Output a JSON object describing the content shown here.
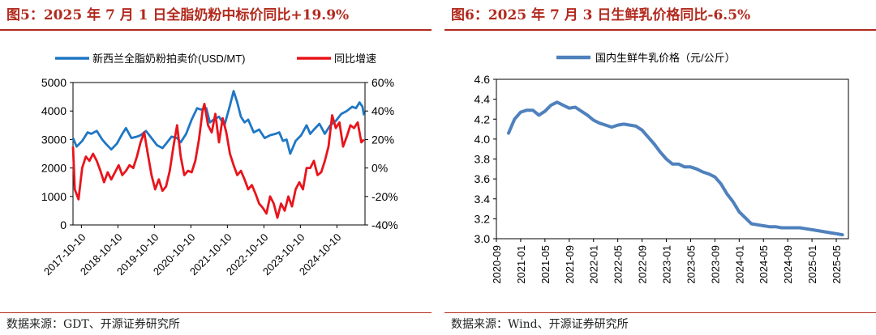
{
  "left": {
    "title": "图5：2025 年 7 月 1 日全脂奶粉中标价同比+19.9%",
    "source": "数据来源：GDT、开源证券研究所",
    "chart_data": {
      "type": "line",
      "title": "",
      "legend_placement": "top",
      "grid": false,
      "x_labels": [
        "2017-10-10",
        "2018-10-10",
        "2019-10-10",
        "2020-10-10",
        "2021-10-10",
        "2022-10-10",
        "2023-10-10",
        "2024-10-10"
      ],
      "x_range": [
        2017.55,
        2025.55
      ],
      "y_left": {
        "range": [
          0,
          5000
        ],
        "ticks": [
          0,
          1000,
          2000,
          3000,
          4000,
          5000
        ],
        "tick_labels": [
          "0",
          "1000",
          "2000",
          "3000",
          "4000",
          "5000"
        ]
      },
      "y_right": {
        "range": [
          -40,
          60
        ],
        "ticks": [
          -40,
          -20,
          0,
          20,
          40,
          60
        ],
        "tick_labels": [
          "-40%",
          "-20%",
          "0%",
          "20%",
          "40%",
          "60%"
        ]
      },
      "series": [
        {
          "name": "新西兰全脂奶粉拍卖价(USD/MT)",
          "color": "#1f77c4",
          "axis": "left",
          "x": [
            2017.55,
            2017.65,
            2017.8,
            2017.95,
            2018.05,
            2018.2,
            2018.35,
            2018.45,
            2018.6,
            2018.75,
            2018.9,
            2019.0,
            2019.15,
            2019.3,
            2019.4,
            2019.55,
            2019.7,
            2019.85,
            2020.0,
            2020.1,
            2020.25,
            2020.4,
            2020.5,
            2020.65,
            2020.8,
            2020.95,
            2021.05,
            2021.2,
            2021.3,
            2021.4,
            2021.55,
            2021.7,
            2021.85,
            2021.95,
            2022.05,
            2022.15,
            2022.25,
            2022.35,
            2022.5,
            2022.65,
            2022.8,
            2022.95,
            2023.1,
            2023.2,
            2023.3,
            2023.4,
            2023.5,
            2023.65,
            2023.8,
            2023.95,
            2024.05,
            2024.15,
            2024.3,
            2024.45,
            2024.6,
            2024.75,
            2024.9,
            2025.05,
            2025.2,
            2025.3,
            2025.4,
            2025.48,
            2025.52
          ],
          "y": [
            3050,
            2750,
            2950,
            3250,
            3200,
            3300,
            3000,
            2850,
            2650,
            2850,
            3200,
            3400,
            3050,
            3100,
            3150,
            3300,
            3050,
            2800,
            2700,
            2850,
            3100,
            3050,
            2900,
            3200,
            3700,
            4100,
            4050,
            4100,
            3600,
            3700,
            3800,
            3500,
            4200,
            4700,
            4300,
            3800,
            3600,
            3700,
            3250,
            3350,
            3050,
            3150,
            3200,
            3250,
            2950,
            3000,
            2500,
            2950,
            3150,
            3500,
            3200,
            3350,
            3550,
            3200,
            3500,
            3650,
            3900,
            4000,
            4150,
            4100,
            4300,
            4150,
            3850
          ]
        },
        {
          "name": "同比增速",
          "color": "#e8141c",
          "axis": "right",
          "x": [
            2017.55,
            2017.6,
            2017.7,
            2017.8,
            2017.9,
            2018.0,
            2018.1,
            2018.2,
            2018.3,
            2018.4,
            2018.5,
            2018.6,
            2018.7,
            2018.8,
            2018.9,
            2019.0,
            2019.1,
            2019.2,
            2019.3,
            2019.4,
            2019.5,
            2019.6,
            2019.7,
            2019.8,
            2019.9,
            2020.0,
            2020.1,
            2020.2,
            2020.3,
            2020.4,
            2020.5,
            2020.6,
            2020.7,
            2020.8,
            2020.9,
            2021.0,
            2021.1,
            2021.15,
            2021.25,
            2021.35,
            2021.45,
            2021.55,
            2021.65,
            2021.75,
            2021.85,
            2021.95,
            2022.05,
            2022.15,
            2022.25,
            2022.35,
            2022.45,
            2022.55,
            2022.65,
            2022.75,
            2022.85,
            2022.95,
            2023.05,
            2023.15,
            2023.25,
            2023.35,
            2023.45,
            2023.55,
            2023.65,
            2023.75,
            2023.85,
            2023.95,
            2024.05,
            2024.15,
            2024.25,
            2024.35,
            2024.45,
            2024.55,
            2024.65,
            2024.75,
            2024.85,
            2024.95,
            2025.05,
            2025.15,
            2025.25,
            2025.35,
            2025.45,
            2025.52
          ],
          "y": [
            15,
            -15,
            -22,
            0,
            8,
            5,
            10,
            5,
            -2,
            -10,
            -3,
            -8,
            -3,
            2,
            -5,
            -2,
            2,
            0,
            8,
            18,
            25,
            10,
            -5,
            -15,
            -8,
            -16,
            -13,
            -2,
            15,
            30,
            8,
            -5,
            -2,
            -3,
            5,
            20,
            40,
            45,
            30,
            25,
            38,
            18,
            35,
            25,
            10,
            2,
            -5,
            -2,
            -8,
            -15,
            -12,
            -18,
            -25,
            -28,
            -32,
            -20,
            -25,
            -35,
            -25,
            -30,
            -20,
            -27,
            -15,
            -10,
            -15,
            0,
            0,
            5,
            -5,
            -3,
            5,
            15,
            37,
            28,
            32,
            15,
            22,
            30,
            28,
            32,
            18,
            20
          ]
        }
      ]
    }
  },
  "right": {
    "title": "图6：2025 年 7 月 3 日生鲜乳价格同比-6.5%",
    "source": "数据来源：Wind、开源证券研究所",
    "chart_data": {
      "type": "line",
      "title": "",
      "legend_placement": "top",
      "grid": false,
      "x_labels": [
        "2020-09",
        "2021-01",
        "2021-05",
        "2021-09",
        "2022-01",
        "2022-05",
        "2022-09",
        "2023-01",
        "2023-05",
        "2023-09",
        "2024-01",
        "2024-05",
        "2024-09",
        "2025-01",
        "2025-05"
      ],
      "x_range": [
        0,
        58
      ],
      "y": {
        "range": [
          3.0,
          4.6
        ],
        "ticks": [
          3.0,
          3.2,
          3.4,
          3.6,
          3.8,
          4.0,
          4.2,
          4.4,
          4.6
        ],
        "tick_labels": [
          "3.0",
          "3.2",
          "3.4",
          "3.6",
          "3.8",
          "4.0",
          "4.2",
          "4.4",
          "4.6"
        ]
      },
      "series": [
        {
          "name": "国内生鲜牛乳价格（元/公斤）",
          "color": "#4f81bd",
          "x": [
            2,
            3,
            4,
            5,
            6,
            7,
            8,
            9,
            10,
            11,
            12,
            13,
            14,
            15,
            16,
            17,
            18,
            19,
            20,
            21,
            22,
            23,
            24,
            25,
            26,
            27,
            28,
            29,
            30,
            31,
            32,
            33,
            34,
            35,
            36,
            37,
            38,
            39,
            40,
            41,
            42,
            43,
            44,
            45,
            46,
            47,
            48,
            49,
            50,
            51,
            52,
            53,
            54,
            55,
            56,
            57
          ],
          "y": [
            4.06,
            4.2,
            4.27,
            4.29,
            4.29,
            4.24,
            4.28,
            4.34,
            4.37,
            4.34,
            4.31,
            4.32,
            4.28,
            4.24,
            4.19,
            4.16,
            4.14,
            4.12,
            4.14,
            4.15,
            4.14,
            4.13,
            4.09,
            4.02,
            3.95,
            3.87,
            3.8,
            3.75,
            3.75,
            3.72,
            3.72,
            3.7,
            3.67,
            3.65,
            3.62,
            3.55,
            3.45,
            3.37,
            3.27,
            3.21,
            3.15,
            3.14,
            3.13,
            3.12,
            3.12,
            3.11,
            3.11,
            3.11,
            3.11,
            3.1,
            3.09,
            3.08,
            3.07,
            3.06,
            3.05,
            3.04
          ]
        }
      ]
    }
  }
}
